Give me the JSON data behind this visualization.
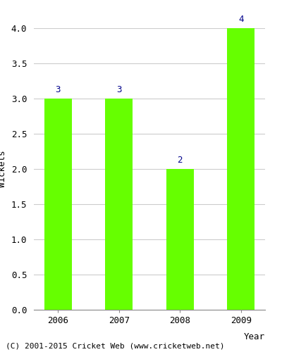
{
  "years": [
    "2006",
    "2007",
    "2008",
    "2009"
  ],
  "values": [
    3,
    3,
    2,
    4
  ],
  "bar_color": "#66ff00",
  "bar_edgecolor": "#66ff00",
  "title": "",
  "xlabel": "Year",
  "ylabel": "Wickets",
  "ylim": [
    0,
    4.0
  ],
  "yticks": [
    0.0,
    0.5,
    1.0,
    1.5,
    2.0,
    2.5,
    3.0,
    3.5,
    4.0
  ],
  "label_color": "#00008b",
  "label_fontsize": 9,
  "axis_label_fontsize": 9,
  "tick_fontsize": 9,
  "grid_color": "#cccccc",
  "background_color": "#ffffff",
  "footer_text": "(C) 2001-2015 Cricket Web (www.cricketweb.net)",
  "footer_fontsize": 8
}
